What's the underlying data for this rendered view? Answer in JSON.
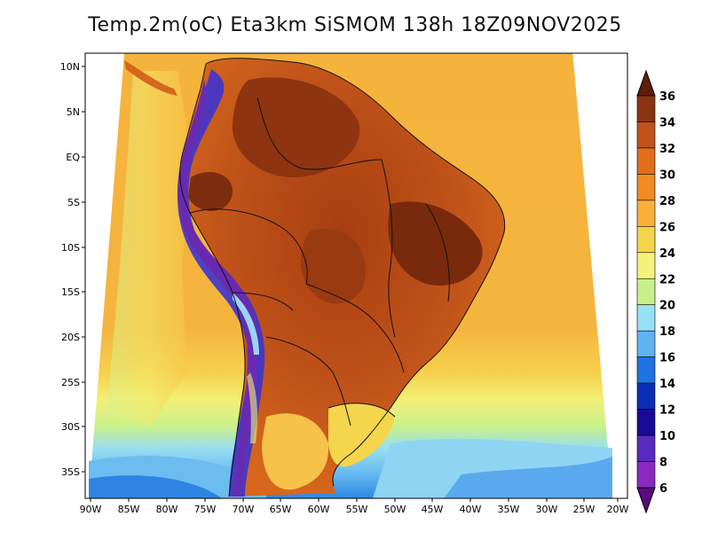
{
  "title": "Temp.2m(oC) Eta3km SiSMOM 138h 18Z09NOV2025",
  "map": {
    "variable": "2 m air temperature",
    "units": "oC",
    "region": "South America",
    "lat_labels": [
      "10N",
      "5N",
      "EQ",
      "5S",
      "10S",
      "15S",
      "20S",
      "25S",
      "30S",
      "35S"
    ],
    "lon_labels": [
      "90W",
      "85W",
      "80W",
      "75W",
      "70W",
      "65W",
      "60W",
      "55W",
      "50W",
      "45W",
      "40W",
      "35W",
      "30W",
      "25W",
      "20W"
    ],
    "colors": {
      "ocean_tropical": "#f5b53c",
      "interior_hot": "#b04510",
      "andes": "#3d34d1"
    }
  },
  "colorbar": {
    "labels": [
      "36",
      "34",
      "32",
      "30",
      "28",
      "26",
      "24",
      "22",
      "20",
      "18",
      "16",
      "14",
      "12",
      "10",
      "8",
      "6"
    ],
    "colors": [
      "#5e1e08",
      "#8a3512",
      "#c0521a",
      "#e06e1c",
      "#f08a22",
      "#f7b03a",
      "#f4d44a",
      "#f4f27a",
      "#c8f08a",
      "#98e0f4",
      "#5fb3f0",
      "#1e73e0",
      "#0a2eb4",
      "#1a0a96",
      "#5a2abe",
      "#8a28c0",
      "#5a0a80"
    ]
  }
}
